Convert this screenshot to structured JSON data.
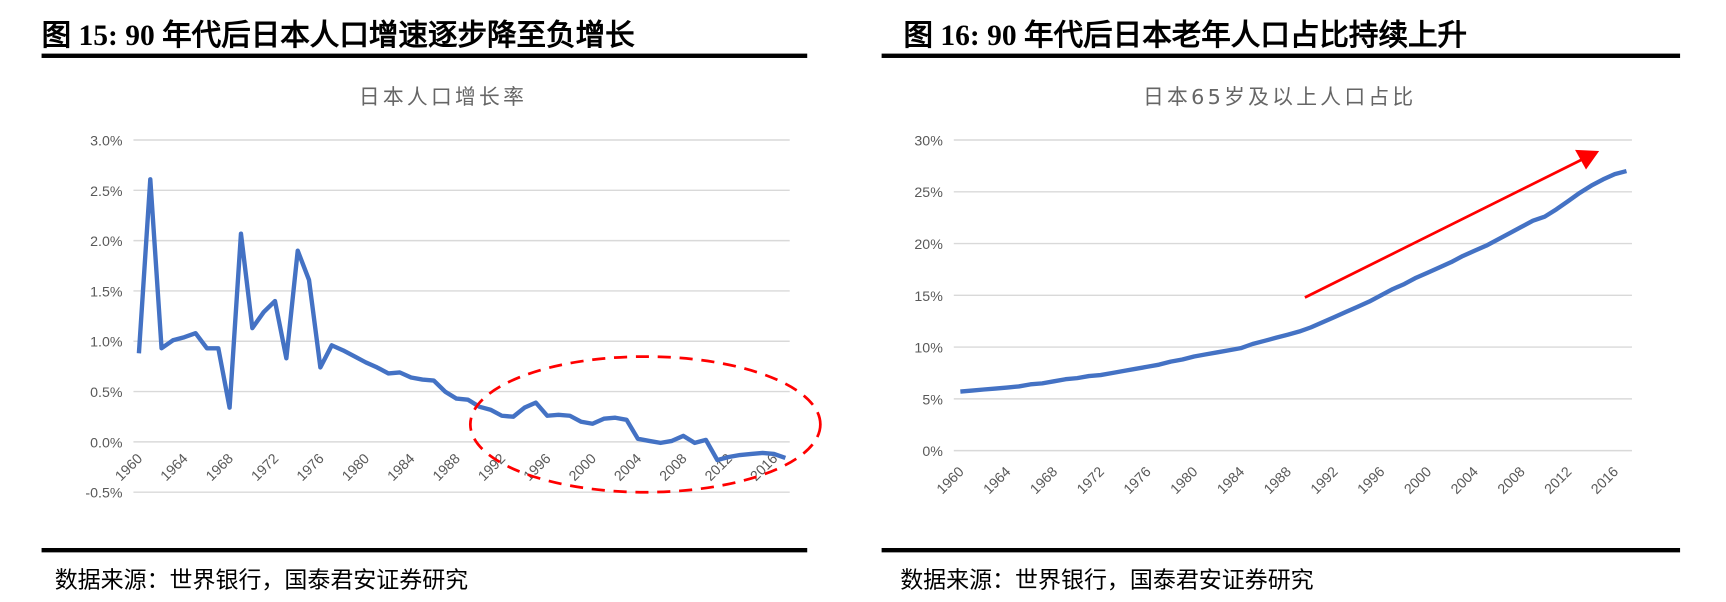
{
  "left": {
    "figure_title": "图 15:  90 年代后日本人口增速逐步降至负增长",
    "source": "数据来源：世界银行，国泰君安证券研究"
  },
  "right": {
    "figure_title": "图 16:  90 年代后日本老年人口占比持续上升",
    "source": "数据来源：世界银行，国泰君安证券研究"
  },
  "chart_data": [
    {
      "type": "line",
      "title": "日本人口增长率",
      "xlabel": "",
      "ylabel": "",
      "ylim": [
        -0.5,
        3.0
      ],
      "yticks": [
        "3.0%",
        "2.5%",
        "2.0%",
        "1.5%",
        "1.0%",
        "0.5%",
        "0.0%",
        "-0.5%"
      ],
      "yunit": "%",
      "xticks": [
        "1960",
        "1964",
        "1968",
        "1972",
        "1976",
        "1980",
        "1984",
        "1988",
        "1992",
        "1996",
        "2000",
        "2004",
        "2008",
        "2012",
        "2016"
      ],
      "grid": true,
      "line_color": "#4472C4",
      "annotation": {
        "shape": "dashed-ellipse",
        "color": "#FF0000",
        "covers": "1990-2017"
      },
      "x": [
        1960,
        1961,
        1962,
        1963,
        1964,
        1965,
        1966,
        1967,
        1968,
        1969,
        1970,
        1971,
        1972,
        1973,
        1974,
        1975,
        1976,
        1977,
        1978,
        1979,
        1980,
        1981,
        1982,
        1983,
        1984,
        1985,
        1986,
        1987,
        1988,
        1989,
        1990,
        1991,
        1992,
        1993,
        1994,
        1995,
        1996,
        1997,
        1998,
        1999,
        2000,
        2001,
        2002,
        2003,
        2004,
        2005,
        2006,
        2007,
        2008,
        2009,
        2010,
        2011,
        2012,
        2013,
        2014,
        2015,
        2016,
        2017
      ],
      "values": [
        0.88,
        2.61,
        0.93,
        1.01,
        1.04,
        1.08,
        0.93,
        0.93,
        0.34,
        2.07,
        1.13,
        1.29,
        1.4,
        0.83,
        1.9,
        1.61,
        0.74,
        0.96,
        0.91,
        0.85,
        0.79,
        0.74,
        0.68,
        0.69,
        0.64,
        0.62,
        0.61,
        0.5,
        0.43,
        0.42,
        0.35,
        0.32,
        0.26,
        0.25,
        0.34,
        0.39,
        0.26,
        0.27,
        0.26,
        0.2,
        0.18,
        0.23,
        0.24,
        0.22,
        0.03,
        0.01,
        -0.01,
        0.01,
        0.06,
        -0.01,
        0.02,
        -0.18,
        -0.15,
        -0.13,
        -0.12,
        -0.11,
        -0.12,
        -0.16
      ]
    },
    {
      "type": "line",
      "title": "日本65岁及以上人口占比",
      "xlabel": "",
      "ylabel": "",
      "ylim": [
        0,
        30
      ],
      "yticks": [
        "30%",
        "25%",
        "20%",
        "15%",
        "10%",
        "5%",
        "0%"
      ],
      "yunit": "%",
      "xticks": [
        "1960",
        "1964",
        "1968",
        "1972",
        "1976",
        "1980",
        "1984",
        "1988",
        "1992",
        "1996",
        "2000",
        "2004",
        "2008",
        "2012",
        "2016"
      ],
      "grid": true,
      "line_color": "#4472C4",
      "annotation": {
        "shape": "arrow",
        "color": "#FF0000",
        "direction": "up-right"
      },
      "x": [
        1960,
        1961,
        1962,
        1963,
        1964,
        1965,
        1966,
        1967,
        1968,
        1969,
        1970,
        1971,
        1972,
        1973,
        1974,
        1975,
        1976,
        1977,
        1978,
        1979,
        1980,
        1981,
        1982,
        1983,
        1984,
        1985,
        1986,
        1987,
        1988,
        1989,
        1990,
        1991,
        1992,
        1993,
        1994,
        1995,
        1996,
        1997,
        1998,
        1999,
        2000,
        2001,
        2002,
        2003,
        2004,
        2005,
        2006,
        2007,
        2008,
        2009,
        2010,
        2011,
        2012,
        2013,
        2014,
        2015,
        2016,
        2017
      ],
      "values": [
        5.7,
        5.8,
        5.9,
        6.0,
        6.1,
        6.2,
        6.4,
        6.5,
        6.7,
        6.9,
        7.0,
        7.2,
        7.3,
        7.5,
        7.7,
        7.9,
        8.1,
        8.3,
        8.6,
        8.8,
        9.1,
        9.3,
        9.5,
        9.7,
        9.9,
        10.3,
        10.6,
        10.9,
        11.2,
        11.5,
        11.9,
        12.4,
        12.9,
        13.4,
        13.9,
        14.4,
        15.0,
        15.6,
        16.1,
        16.7,
        17.2,
        17.7,
        18.2,
        18.8,
        19.3,
        19.8,
        20.4,
        21.0,
        21.6,
        22.2,
        22.6,
        23.3,
        24.1,
        24.9,
        25.6,
        26.2,
        26.7,
        27.0
      ]
    }
  ]
}
